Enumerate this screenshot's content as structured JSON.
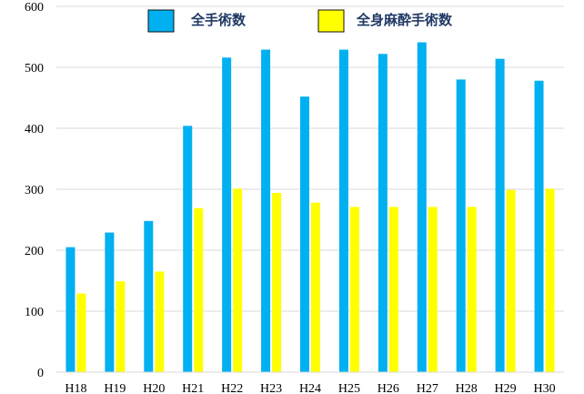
{
  "chart_data": {
    "type": "bar",
    "categories": [
      "H18",
      "H19",
      "H20",
      "H21",
      "H22",
      "H23",
      "H24",
      "H25",
      "H26",
      "H27",
      "H28",
      "H29",
      "H30"
    ],
    "series": [
      {
        "name": "全手術数",
        "color": "#00b0f0",
        "values": [
          205,
          229,
          248,
          404,
          516,
          529,
          452,
          529,
          522,
          541,
          480,
          514,
          478
        ]
      },
      {
        "name": "全身麻酔手術数",
        "color": "#ffff00",
        "values": [
          129,
          149,
          165,
          269,
          301,
          294,
          278,
          271,
          271,
          271,
          271,
          299,
          301
        ]
      }
    ],
    "ylim": [
      0,
      600
    ],
    "yticks": [
      "0",
      "100",
      "200",
      "300",
      "400",
      "500",
      "600"
    ],
    "grid": true,
    "legend_position": "top"
  }
}
